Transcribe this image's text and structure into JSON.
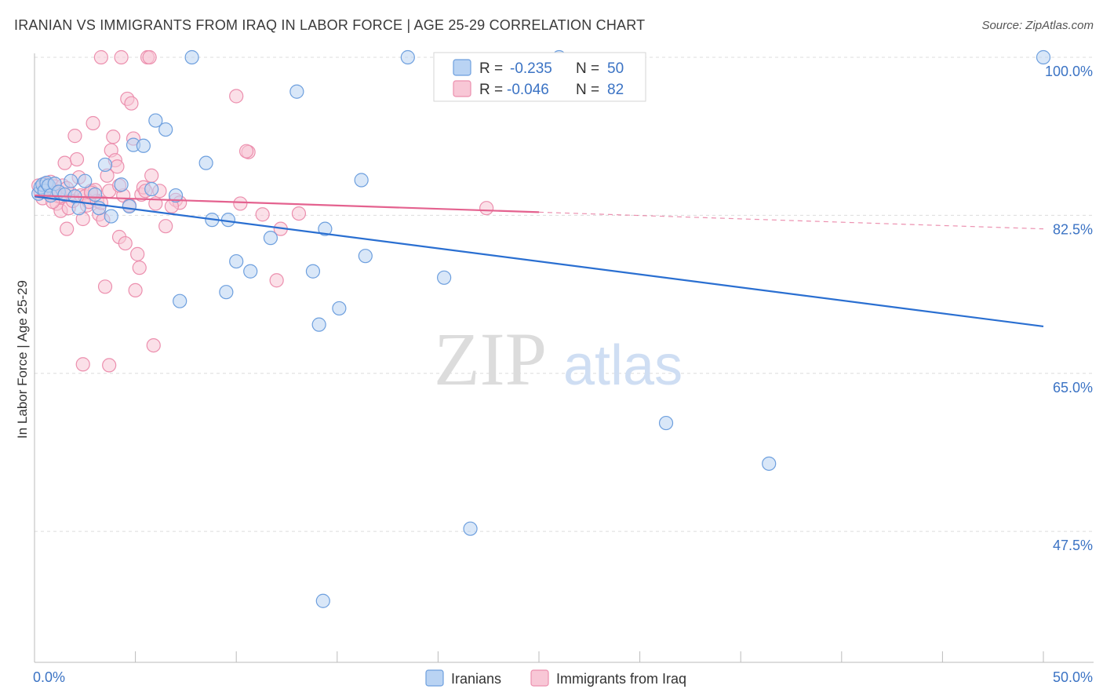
{
  "header": {
    "title": "IRANIAN VS IMMIGRANTS FROM IRAQ IN LABOR FORCE | AGE 25-29 CORRELATION CHART",
    "source": "Source: ZipAtlas.com"
  },
  "watermark": {
    "zip": "ZIP",
    "atlas": "atlas"
  },
  "colors": {
    "iranians_fill": "#b9d3f3",
    "iranians_stroke": "#6d9fde",
    "iranians_line": "#2a6fd1",
    "iraq_fill": "#f8c7d6",
    "iraq_stroke": "#ec8fae",
    "iraq_line": "#e4628f",
    "tick_label": "#3b73c4",
    "grid": "#dcdcdc"
  },
  "legend_top": {
    "rows": [
      {
        "r_label": "R =",
        "r_value": "-0.235",
        "n_label": "N =",
        "n_value": "50"
      },
      {
        "r_label": "R =",
        "r_value": "-0.046",
        "n_label": "N =",
        "n_value": "82"
      }
    ]
  },
  "chart_data": {
    "type": "scatter",
    "ylabel": "In Labor Force | Age 25-29",
    "xlim": [
      0,
      50
    ],
    "ylim": [
      33,
      102
    ],
    "x_tick_labels": [
      "0.0%",
      "50.0%"
    ],
    "y_ticks": [
      100,
      82.5,
      65,
      47.5
    ],
    "y_tick_labels": [
      "100.0%",
      "82.5%",
      "65.0%",
      "47.5%"
    ],
    "grid": "horizontal dashed",
    "legend_position": "bottom-center",
    "series": [
      {
        "name": "Iranians",
        "r": -0.235,
        "n": 50,
        "trend": {
          "x": [
            0,
            50
          ],
          "y": [
            84.6,
            70.2
          ],
          "dashed_from": null
        },
        "points": [
          [
            0.2,
            84.9
          ],
          [
            0.3,
            85.6
          ],
          [
            0.4,
            85.9
          ],
          [
            0.5,
            85.2
          ],
          [
            0.6,
            86.1
          ],
          [
            0.7,
            85.8
          ],
          [
            0.8,
            84.7
          ],
          [
            1.0,
            86.0
          ],
          [
            1.2,
            85.1
          ],
          [
            1.5,
            84.8
          ],
          [
            1.8,
            86.3
          ],
          [
            2.0,
            84.6
          ],
          [
            2.2,
            83.3
          ],
          [
            2.5,
            86.3
          ],
          [
            3.0,
            84.8
          ],
          [
            3.2,
            83.3
          ],
          [
            3.5,
            88.1
          ],
          [
            3.8,
            82.4
          ],
          [
            4.3,
            85.9
          ],
          [
            4.7,
            83.5
          ],
          [
            4.9,
            90.3
          ],
          [
            5.4,
            90.2
          ],
          [
            5.8,
            85.4
          ],
          [
            6.0,
            93.0
          ],
          [
            6.5,
            92.0
          ],
          [
            7.0,
            84.7
          ],
          [
            7.2,
            73.0
          ],
          [
            7.8,
            100.0
          ],
          [
            8.5,
            88.3
          ],
          [
            8.8,
            82.0
          ],
          [
            9.5,
            74.0
          ],
          [
            9.6,
            82.0
          ],
          [
            10.0,
            77.4
          ],
          [
            10.7,
            76.3
          ],
          [
            11.7,
            80.0
          ],
          [
            13.0,
            96.2
          ],
          [
            13.8,
            76.3
          ],
          [
            14.1,
            70.4
          ],
          [
            14.3,
            39.8
          ],
          [
            14.4,
            81.0
          ],
          [
            15.1,
            72.2
          ],
          [
            16.2,
            86.4
          ],
          [
            16.4,
            78.0
          ],
          [
            18.5,
            100.0
          ],
          [
            20.3,
            75.6
          ],
          [
            21.6,
            47.8
          ],
          [
            26.0,
            100.0
          ],
          [
            31.3,
            59.5
          ],
          [
            36.4,
            55.0
          ],
          [
            50.0,
            100.0
          ]
        ]
      },
      {
        "name": "Immigrants from Iraq",
        "r": -0.046,
        "n": 82,
        "trend": {
          "x": [
            0,
            50
          ],
          "y": [
            84.7,
            81.0
          ],
          "solid_until": 25.0
        },
        "points": [
          [
            0.2,
            85.8
          ],
          [
            0.3,
            85.1
          ],
          [
            0.4,
            84.4
          ],
          [
            0.5,
            86.0
          ],
          [
            0.6,
            85.6
          ],
          [
            0.7,
            85.0
          ],
          [
            0.8,
            86.2
          ],
          [
            0.9,
            85.4
          ],
          [
            1.0,
            85.7
          ],
          [
            1.1,
            83.8
          ],
          [
            1.2,
            84.6
          ],
          [
            1.3,
            83.0
          ],
          [
            1.4,
            85.8
          ],
          [
            1.5,
            88.3
          ],
          [
            1.6,
            81.0
          ],
          [
            1.7,
            83.3
          ],
          [
            1.8,
            84.9
          ],
          [
            1.9,
            84.1
          ],
          [
            2.0,
            91.3
          ],
          [
            2.1,
            88.7
          ],
          [
            2.2,
            86.7
          ],
          [
            2.3,
            84.7
          ],
          [
            2.4,
            82.1
          ],
          [
            2.5,
            84.6
          ],
          [
            2.6,
            83.6
          ],
          [
            2.7,
            84.0
          ],
          [
            2.8,
            85.2
          ],
          [
            2.9,
            92.7
          ],
          [
            3.0,
            85.3
          ],
          [
            3.1,
            84.1
          ],
          [
            3.2,
            82.6
          ],
          [
            3.3,
            83.9
          ],
          [
            3.4,
            82.0
          ],
          [
            3.5,
            74.6
          ],
          [
            3.6,
            86.9
          ],
          [
            3.7,
            85.2
          ],
          [
            3.8,
            89.7
          ],
          [
            3.9,
            91.2
          ],
          [
            4.0,
            88.6
          ],
          [
            4.1,
            87.9
          ],
          [
            4.2,
            80.1
          ],
          [
            4.3,
            100.0
          ],
          [
            4.4,
            84.7
          ],
          [
            4.5,
            79.4
          ],
          [
            4.6,
            95.4
          ],
          [
            4.7,
            83.6
          ],
          [
            4.8,
            94.9
          ],
          [
            4.9,
            91.0
          ],
          [
            5.0,
            74.2
          ],
          [
            5.1,
            78.2
          ],
          [
            5.2,
            76.7
          ],
          [
            5.3,
            84.8
          ],
          [
            5.4,
            85.6
          ],
          [
            5.5,
            85.2
          ],
          [
            5.6,
            100.0
          ],
          [
            5.7,
            100.0
          ],
          [
            5.8,
            86.9
          ],
          [
            5.9,
            68.1
          ],
          [
            6.0,
            83.8
          ],
          [
            6.2,
            85.2
          ],
          [
            6.5,
            81.3
          ],
          [
            7.0,
            84.2
          ],
          [
            7.2,
            83.9
          ],
          [
            2.4,
            66.0
          ],
          [
            3.7,
            65.9
          ],
          [
            10.2,
            83.8
          ],
          [
            10.0,
            95.7
          ],
          [
            10.6,
            89.5
          ],
          [
            11.3,
            82.6
          ],
          [
            12.0,
            75.3
          ],
          [
            12.2,
            81.0
          ],
          [
            13.1,
            82.7
          ],
          [
            22.4,
            83.3
          ],
          [
            1.3,
            84.6
          ],
          [
            0.9,
            84.0
          ],
          [
            1.6,
            85.5
          ],
          [
            2.8,
            85.0
          ],
          [
            4.2,
            85.8
          ],
          [
            6.8,
            83.5
          ],
          [
            3.3,
            100.0
          ],
          [
            10.5,
            89.6
          ],
          [
            1.0,
            85.0
          ]
        ]
      }
    ]
  }
}
